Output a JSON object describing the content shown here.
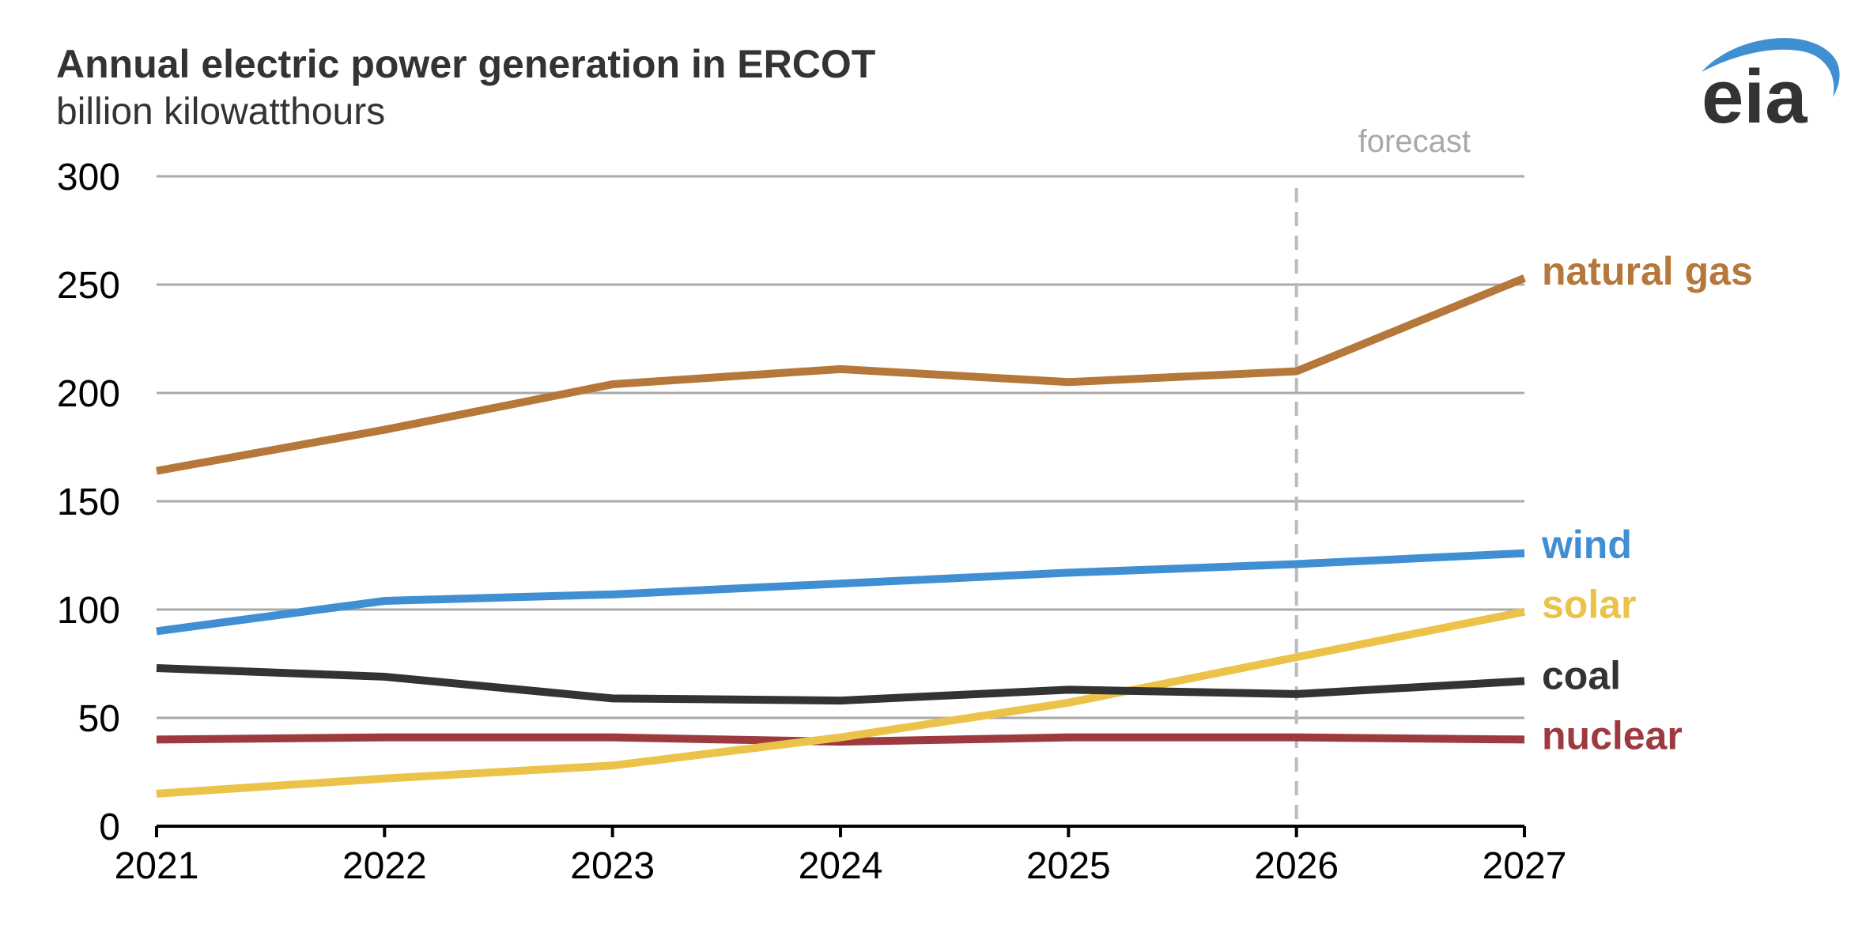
{
  "chart_data": {
    "type": "line",
    "title": "Annual electric power generation in ERCOT",
    "subtitle": "billion kilowatthours",
    "xlabel": "",
    "ylabel": "",
    "categories": [
      "2021",
      "2022",
      "2023",
      "2024",
      "2025",
      "2026",
      "2027"
    ],
    "ylim": [
      0,
      300
    ],
    "yticks": [
      "0",
      "50",
      "100",
      "150",
      "200",
      "250",
      "300"
    ],
    "grid": true,
    "forecast_start": "2026",
    "forecast_label": "forecast",
    "series": [
      {
        "name": "natural gas",
        "color": "#b5773a",
        "values": [
          164,
          183,
          204,
          211,
          205,
          210,
          253
        ]
      },
      {
        "name": "wind",
        "color": "#3f8fd2",
        "values": [
          90,
          104,
          107,
          112,
          117,
          121,
          126
        ]
      },
      {
        "name": "solar",
        "color": "#ebc24a",
        "values": [
          15,
          22,
          28,
          41,
          57,
          78,
          99
        ]
      },
      {
        "name": "coal",
        "color": "#333333",
        "values": [
          73,
          69,
          59,
          58,
          63,
          61,
          67
        ]
      },
      {
        "name": "nuclear",
        "color": "#9c3a40",
        "values": [
          40,
          41,
          41,
          39,
          41,
          41,
          40
        ]
      }
    ]
  },
  "logo": {
    "text": "eia",
    "color": "#333333",
    "swoosh_color": "#3f8fd2"
  }
}
